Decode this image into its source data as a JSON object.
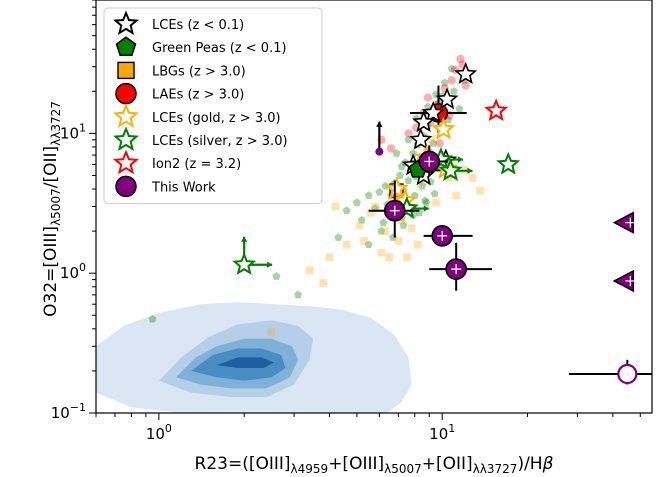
{
  "chart_data": {
    "type": "scatter",
    "xscale": "log",
    "yscale": "log",
    "xlim": [
      0.6,
      55
    ],
    "ylim": [
      0.1,
      90
    ],
    "xticks": [
      {
        "value": 1,
        "base": "10",
        "exp": "0"
      },
      {
        "value": 10,
        "base": "10",
        "exp": "1"
      }
    ],
    "yticks": [
      {
        "value": 0.1,
        "base": "10",
        "exp": "−1"
      },
      {
        "value": 1,
        "base": "10",
        "exp": "0"
      },
      {
        "value": 10,
        "base": "10",
        "exp": "1"
      }
    ],
    "xlabel": {
      "parts": [
        {
          "t": "R23=([OIII]"
        },
        {
          "t": "λ4959",
          "sub": true
        },
        {
          "t": "+[OIII]"
        },
        {
          "t": "λ5007",
          "sub": true
        },
        {
          "t": "+[OII]"
        },
        {
          "t": "λλ3727",
          "sub": true
        },
        {
          "t": ")/H"
        },
        {
          "t": "β",
          "italic": true
        }
      ]
    },
    "ylabel": {
      "parts": [
        {
          "t": "O32=[OIII]"
        },
        {
          "t": "λ5007",
          "sub": true
        },
        {
          "t": "/[OII]"
        },
        {
          "t": "λλ3727",
          "sub": true
        }
      ]
    },
    "legend": {
      "position": "top-left",
      "entries": [
        {
          "label": "LCEs (z < 0.1)",
          "marker": "star",
          "fill": "#ffffff",
          "stroke": "#000000"
        },
        {
          "label": "Green Peas (z < 0.1)",
          "marker": "pentagon",
          "fill": "#008000",
          "stroke": "#000000"
        },
        {
          "label": "LBGs (z > 3.0)",
          "marker": "square",
          "fill": "#ffa500",
          "stroke": "#000000"
        },
        {
          "label": "LAEs (z > 3.0)",
          "marker": "circle",
          "fill": "#ff0000",
          "stroke": "#000000"
        },
        {
          "label": "LCEs (gold, z > 3.0)",
          "marker": "star",
          "fill": "#ffffff",
          "stroke": "#ffb000"
        },
        {
          "label": "LCEs (silver, z > 3.0)",
          "marker": "star",
          "fill": "#ffffff",
          "stroke": "#008000"
        },
        {
          "label": "Ion2 (z = 3.2)",
          "marker": "star",
          "fill": "#ffffff",
          "stroke": "#ff0000"
        },
        {
          "label": "This Work",
          "marker": "circle",
          "fill": "#800080",
          "stroke": "#000000"
        }
      ]
    },
    "colors": {
      "lces": "#000000",
      "green_peas": "#008000",
      "lbgs": "#ffa500",
      "laes": "#ff0000",
      "gold": "#ffb000",
      "silver": "#008000",
      "ion2": "#ff0000",
      "this_work": "#800080",
      "density": [
        "#dbe6f5",
        "#b6cfe9",
        "#7fb0d8",
        "#4a8cc4",
        "#1f5fa0"
      ]
    },
    "density_levels": [
      {
        "level": 1,
        "points": [
          [
            0.6,
            0.3
          ],
          [
            0.75,
            0.42
          ],
          [
            1.0,
            0.52
          ],
          [
            1.4,
            0.6
          ],
          [
            1.9,
            0.62
          ],
          [
            2.6,
            0.6
          ],
          [
            3.4,
            0.58
          ],
          [
            4.4,
            0.55
          ],
          [
            5.6,
            0.48
          ],
          [
            6.8,
            0.36
          ],
          [
            7.6,
            0.25
          ],
          [
            7.8,
            0.16
          ],
          [
            7.2,
            0.12
          ],
          [
            6.4,
            0.1
          ],
          [
            5.0,
            0.1
          ],
          [
            3.0,
            0.1
          ],
          [
            1.8,
            0.1
          ],
          [
            1.2,
            0.1
          ],
          [
            0.8,
            0.11
          ],
          [
            0.6,
            0.14
          ]
        ]
      },
      {
        "level": 2,
        "points": [
          [
            1.0,
            0.17
          ],
          [
            1.2,
            0.25
          ],
          [
            1.5,
            0.35
          ],
          [
            1.9,
            0.43
          ],
          [
            2.5,
            0.46
          ],
          [
            3.1,
            0.42
          ],
          [
            3.5,
            0.34
          ],
          [
            3.4,
            0.24
          ],
          [
            3.0,
            0.16
          ],
          [
            2.4,
            0.13
          ],
          [
            1.8,
            0.13
          ],
          [
            1.3,
            0.14
          ]
        ]
      },
      {
        "level": 3,
        "points": [
          [
            1.15,
            0.18
          ],
          [
            1.35,
            0.25
          ],
          [
            1.6,
            0.3
          ],
          [
            2.0,
            0.34
          ],
          [
            2.5,
            0.34
          ],
          [
            2.95,
            0.3
          ],
          [
            3.1,
            0.24
          ],
          [
            2.9,
            0.18
          ],
          [
            2.4,
            0.15
          ],
          [
            1.8,
            0.15
          ],
          [
            1.4,
            0.16
          ]
        ]
      },
      {
        "level": 4,
        "points": [
          [
            1.3,
            0.2
          ],
          [
            1.55,
            0.26
          ],
          [
            1.9,
            0.29
          ],
          [
            2.3,
            0.29
          ],
          [
            2.7,
            0.26
          ],
          [
            2.8,
            0.21
          ],
          [
            2.5,
            0.18
          ],
          [
            2.0,
            0.17
          ],
          [
            1.6,
            0.18
          ]
        ]
      },
      {
        "level": 5,
        "points": [
          [
            1.6,
            0.22
          ],
          [
            1.9,
            0.25
          ],
          [
            2.3,
            0.25
          ],
          [
            2.55,
            0.23
          ],
          [
            2.35,
            0.21
          ],
          [
            1.9,
            0.21
          ]
        ]
      }
    ],
    "series": [
      {
        "name": "Green Peas (z < 0.1)",
        "kind": "background",
        "marker": "pentagon",
        "points": [
          [
            0.95,
            0.47
          ],
          [
            2.6,
            0.95
          ],
          [
            3.1,
            0.7
          ],
          [
            4.3,
            1.8
          ],
          [
            4.6,
            2.8
          ],
          [
            5.0,
            3.2
          ],
          [
            5.2,
            2.4
          ],
          [
            5.5,
            3.6
          ],
          [
            5.8,
            2.9
          ],
          [
            6.0,
            3.8
          ],
          [
            6.2,
            2.3
          ],
          [
            6.3,
            4.2
          ],
          [
            6.4,
            3.1
          ],
          [
            6.5,
            2.6
          ],
          [
            6.6,
            3.6
          ],
          [
            6.8,
            4.4
          ],
          [
            6.9,
            2.9
          ],
          [
            7.0,
            3.4
          ],
          [
            7.1,
            5.0
          ],
          [
            7.2,
            2.5
          ],
          [
            7.3,
            3.9
          ],
          [
            7.4,
            6.2
          ],
          [
            7.5,
            3.1
          ],
          [
            7.6,
            4.6
          ],
          [
            7.7,
            2.8
          ],
          [
            7.8,
            5.6
          ],
          [
            7.9,
            7.2
          ],
          [
            8.0,
            3.6
          ],
          [
            8.1,
            4.9
          ],
          [
            8.2,
            8.3
          ],
          [
            8.3,
            2.7
          ],
          [
            8.4,
            6.5
          ],
          [
            8.5,
            4.2
          ],
          [
            8.6,
            9.6
          ],
          [
            8.7,
            3.3
          ],
          [
            8.8,
            5.9
          ],
          [
            8.9,
            11.2
          ],
          [
            9.0,
            7.4
          ],
          [
            9.1,
            4.5
          ],
          [
            9.2,
            13.0
          ],
          [
            9.3,
            8.5
          ],
          [
            9.5,
            6.1
          ],
          [
            9.7,
            16.5
          ],
          [
            9.8,
            10.8
          ],
          [
            10.0,
            18.5
          ],
          [
            10.2,
            23.0
          ],
          [
            10.5,
            12.5
          ],
          [
            10.8,
            29.0
          ],
          [
            11.0,
            20.0
          ],
          [
            11.5,
            15.0
          ],
          [
            12.0,
            24.0
          ],
          [
            7.3,
            2.2
          ],
          [
            7.9,
            2.6
          ],
          [
            8.8,
            3.2
          ],
          [
            9.4,
            3.7
          ],
          [
            6.1,
            2.0
          ],
          [
            6.7,
            1.8
          ],
          [
            5.5,
            1.6
          ],
          [
            7.6,
            9.0
          ],
          [
            8.1,
            12.8
          ],
          [
            8.9,
            15.5
          ],
          [
            9.5,
            19.0
          ],
          [
            6.9,
            7.2
          ],
          [
            7.2,
            5.8
          ]
        ]
      },
      {
        "name": "LBGs (z > 3.0)",
        "kind": "background",
        "marker": "square",
        "points": [
          [
            2.5,
            0.38
          ],
          [
            3.4,
            1.05
          ],
          [
            3.8,
            0.85
          ],
          [
            4.0,
            1.3
          ],
          [
            4.2,
            3.0
          ],
          [
            4.6,
            1.6
          ],
          [
            5.1,
            2.2
          ],
          [
            5.3,
            1.7
          ],
          [
            5.6,
            2.7
          ],
          [
            6.1,
            1.4
          ],
          [
            6.3,
            2.0
          ],
          [
            6.5,
            1.3
          ],
          [
            7.0,
            1.7
          ],
          [
            7.2,
            2.4
          ],
          [
            7.5,
            1.3
          ],
          [
            7.8,
            2.1
          ],
          [
            8.2,
            1.6
          ],
          [
            8.6,
            4.5
          ],
          [
            9.5,
            3.2
          ],
          [
            10.5,
            4.8
          ],
          [
            11.2,
            3.6
          ],
          [
            12.0,
            5.5
          ],
          [
            12.8,
            4.8
          ],
          [
            13.6,
            3.9
          ],
          [
            8.3,
            6.2
          ],
          [
            8.8,
            7.8
          ],
          [
            9.2,
            9.1
          ],
          [
            7.0,
            3.0
          ],
          [
            6.6,
            3.3
          ],
          [
            5.8,
            3.0
          ]
        ]
      },
      {
        "name": "LAEs (z > 3.0)",
        "kind": "background",
        "marker": "circle",
        "points": [
          [
            6.6,
            7.8
          ],
          [
            8.1,
            11.0
          ],
          [
            9.6,
            16.0
          ],
          [
            10.2,
            21.0
          ],
          [
            11.1,
            28.5
          ],
          [
            11.8,
            31.0
          ],
          [
            10.8,
            24.0
          ],
          [
            12.1,
            22.0
          ],
          [
            9.1,
            12.0
          ],
          [
            7.6,
            10.0
          ],
          [
            6.1,
            9.0
          ],
          [
            8.6,
            14.0
          ],
          [
            11.6,
            34.0
          ],
          [
            9.8,
            8.5
          ],
          [
            10.6,
            13.5
          ],
          [
            8.9,
            18.0
          ]
        ]
      }
    ],
    "this_work": [
      {
        "x": 9.0,
        "y": 6.3,
        "xerr": [
          1.3,
          1.5
        ],
        "yerr": [
          1.4,
          1.9
        ]
      },
      {
        "x": 6.8,
        "y": 2.8,
        "xerr": [
          1.3,
          1.5
        ],
        "yerr": [
          1.0,
          1.8
        ]
      },
      {
        "x": 10.0,
        "y": 1.85,
        "xerr": [
          1.4,
          2.8
        ],
        "yerr": [
          0.3,
          0.35
        ]
      },
      {
        "x": 11.2,
        "y": 1.07,
        "xerr": [
          2.2,
          3.8
        ],
        "yerr": [
          0.32,
          0.58
        ]
      },
      {
        "x": 6.0,
        "y": 7.4,
        "limit": "lower"
      }
    ],
    "this_work_lower_limits": [
      {
        "x": 45.0,
        "y": 2.3
      },
      {
        "x": 45.0,
        "y": 0.88
      }
    ],
    "this_work_open": [
      {
        "x": 45.0,
        "y": 0.19,
        "xerr": [
          17.0,
          10.0
        ],
        "yerr": [
          0.03,
          0.05
        ]
      }
    ],
    "lces_local": [
      [
        12.1,
        26.5
      ],
      [
        10.4,
        17.5
      ],
      [
        9.3,
        14.0
      ],
      [
        8.6,
        12.0
      ],
      [
        8.4,
        9.0
      ],
      [
        7.9,
        5.9
      ],
      [
        8.6,
        5.0
      ],
      [
        10.3,
        6.4
      ]
    ],
    "green_peas_highlight": [
      [
        8.2,
        5.5
      ],
      [
        9.4,
        6.1
      ]
    ],
    "lbg_highlight": [
      [
        6.9,
        3.9
      ]
    ],
    "laes_highlight": [
      [
        9.7,
        14.0,
        2.0,
        2.5,
        4.0,
        8.0
      ]
    ],
    "gold_lces": [
      [
        10.1,
        10.7
      ],
      [
        8.8,
        6.7
      ],
      [
        10.3,
        5.6
      ],
      [
        7.4,
        3.3
      ],
      [
        6.9,
        4.0
      ]
    ],
    "silver_lces": [
      [
        2.0,
        1.15,
        "right-up"
      ],
      [
        17.1,
        6.0
      ],
      [
        7.5,
        2.9,
        "right"
      ],
      [
        10.7,
        5.4,
        "right"
      ],
      [
        9.9,
        6.5,
        "right"
      ]
    ],
    "ion2": [
      15.5,
      14.5
    ]
  }
}
